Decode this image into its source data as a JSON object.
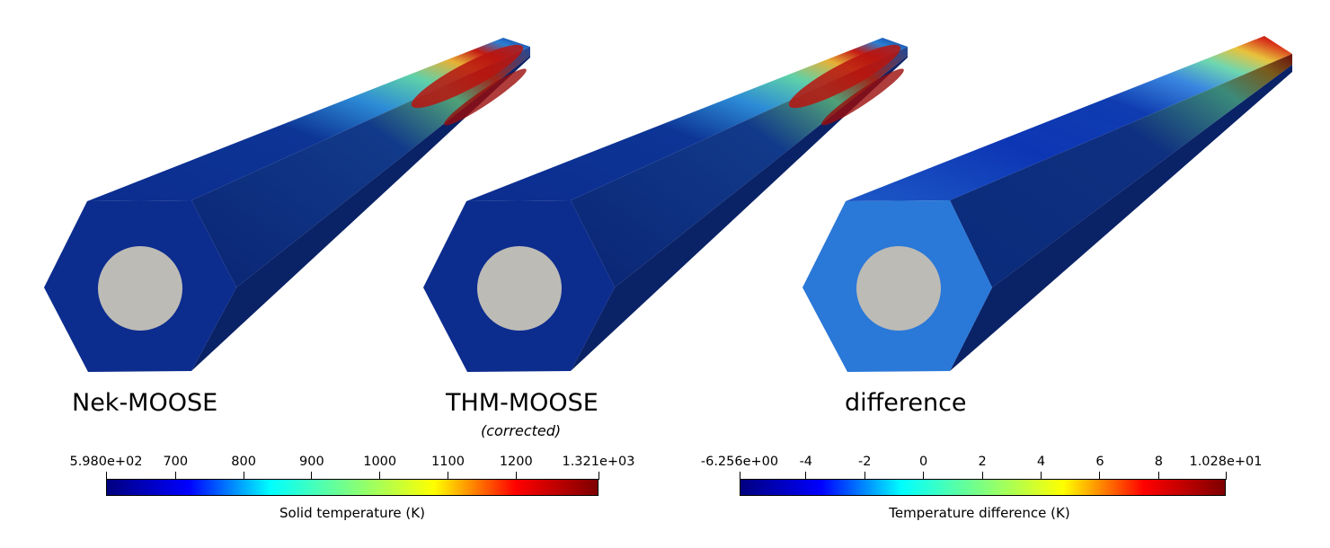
{
  "panels": [
    {
      "id": "nek",
      "label": "Nek-MOOSE",
      "sublabel": ""
    },
    {
      "id": "thm",
      "label": "THM-MOOSE",
      "sublabel": "(corrected)"
    },
    {
      "id": "diff",
      "label": "difference",
      "sublabel": ""
    }
  ],
  "colorbars": {
    "temperature": {
      "title": "Solid temperature (K)",
      "min_label": "5.980e+02",
      "max_label": "1.321e+03",
      "min": 598.0,
      "max": 1321.0,
      "ticks": [
        {
          "value": 598,
          "label": "5.980e+02"
        },
        {
          "value": 700,
          "label": "700"
        },
        {
          "value": 800,
          "label": "800"
        },
        {
          "value": 900,
          "label": "900"
        },
        {
          "value": 1000,
          "label": "1000"
        },
        {
          "value": 1100,
          "label": "1100"
        },
        {
          "value": 1200,
          "label": "1200"
        },
        {
          "value": 1321,
          "label": "1.321e+03"
        }
      ]
    },
    "difference": {
      "title": "Temperature difference (K)",
      "min": -6.256,
      "max": 10.28,
      "ticks": [
        {
          "value": -6.256,
          "label": "-6.256e+00"
        },
        {
          "value": -4,
          "label": "-4"
        },
        {
          "value": -2,
          "label": "-2"
        },
        {
          "value": 0,
          "label": "0"
        },
        {
          "value": 2,
          "label": "2"
        },
        {
          "value": 4,
          "label": "4"
        },
        {
          "value": 6,
          "label": "6"
        },
        {
          "value": 8,
          "label": "8"
        },
        {
          "value": 10.28,
          "label": "1.028e+01"
        }
      ]
    }
  },
  "colormap": [
    "#00007f",
    "#0000ff",
    "#00ffff",
    "#7fff7f",
    "#ffff00",
    "#ff0000",
    "#7f0000"
  ],
  "colors": {
    "cold_face": "#0b2d8f",
    "diff_face": "#2a78d8",
    "pin_hole": "#bdbbb6"
  }
}
